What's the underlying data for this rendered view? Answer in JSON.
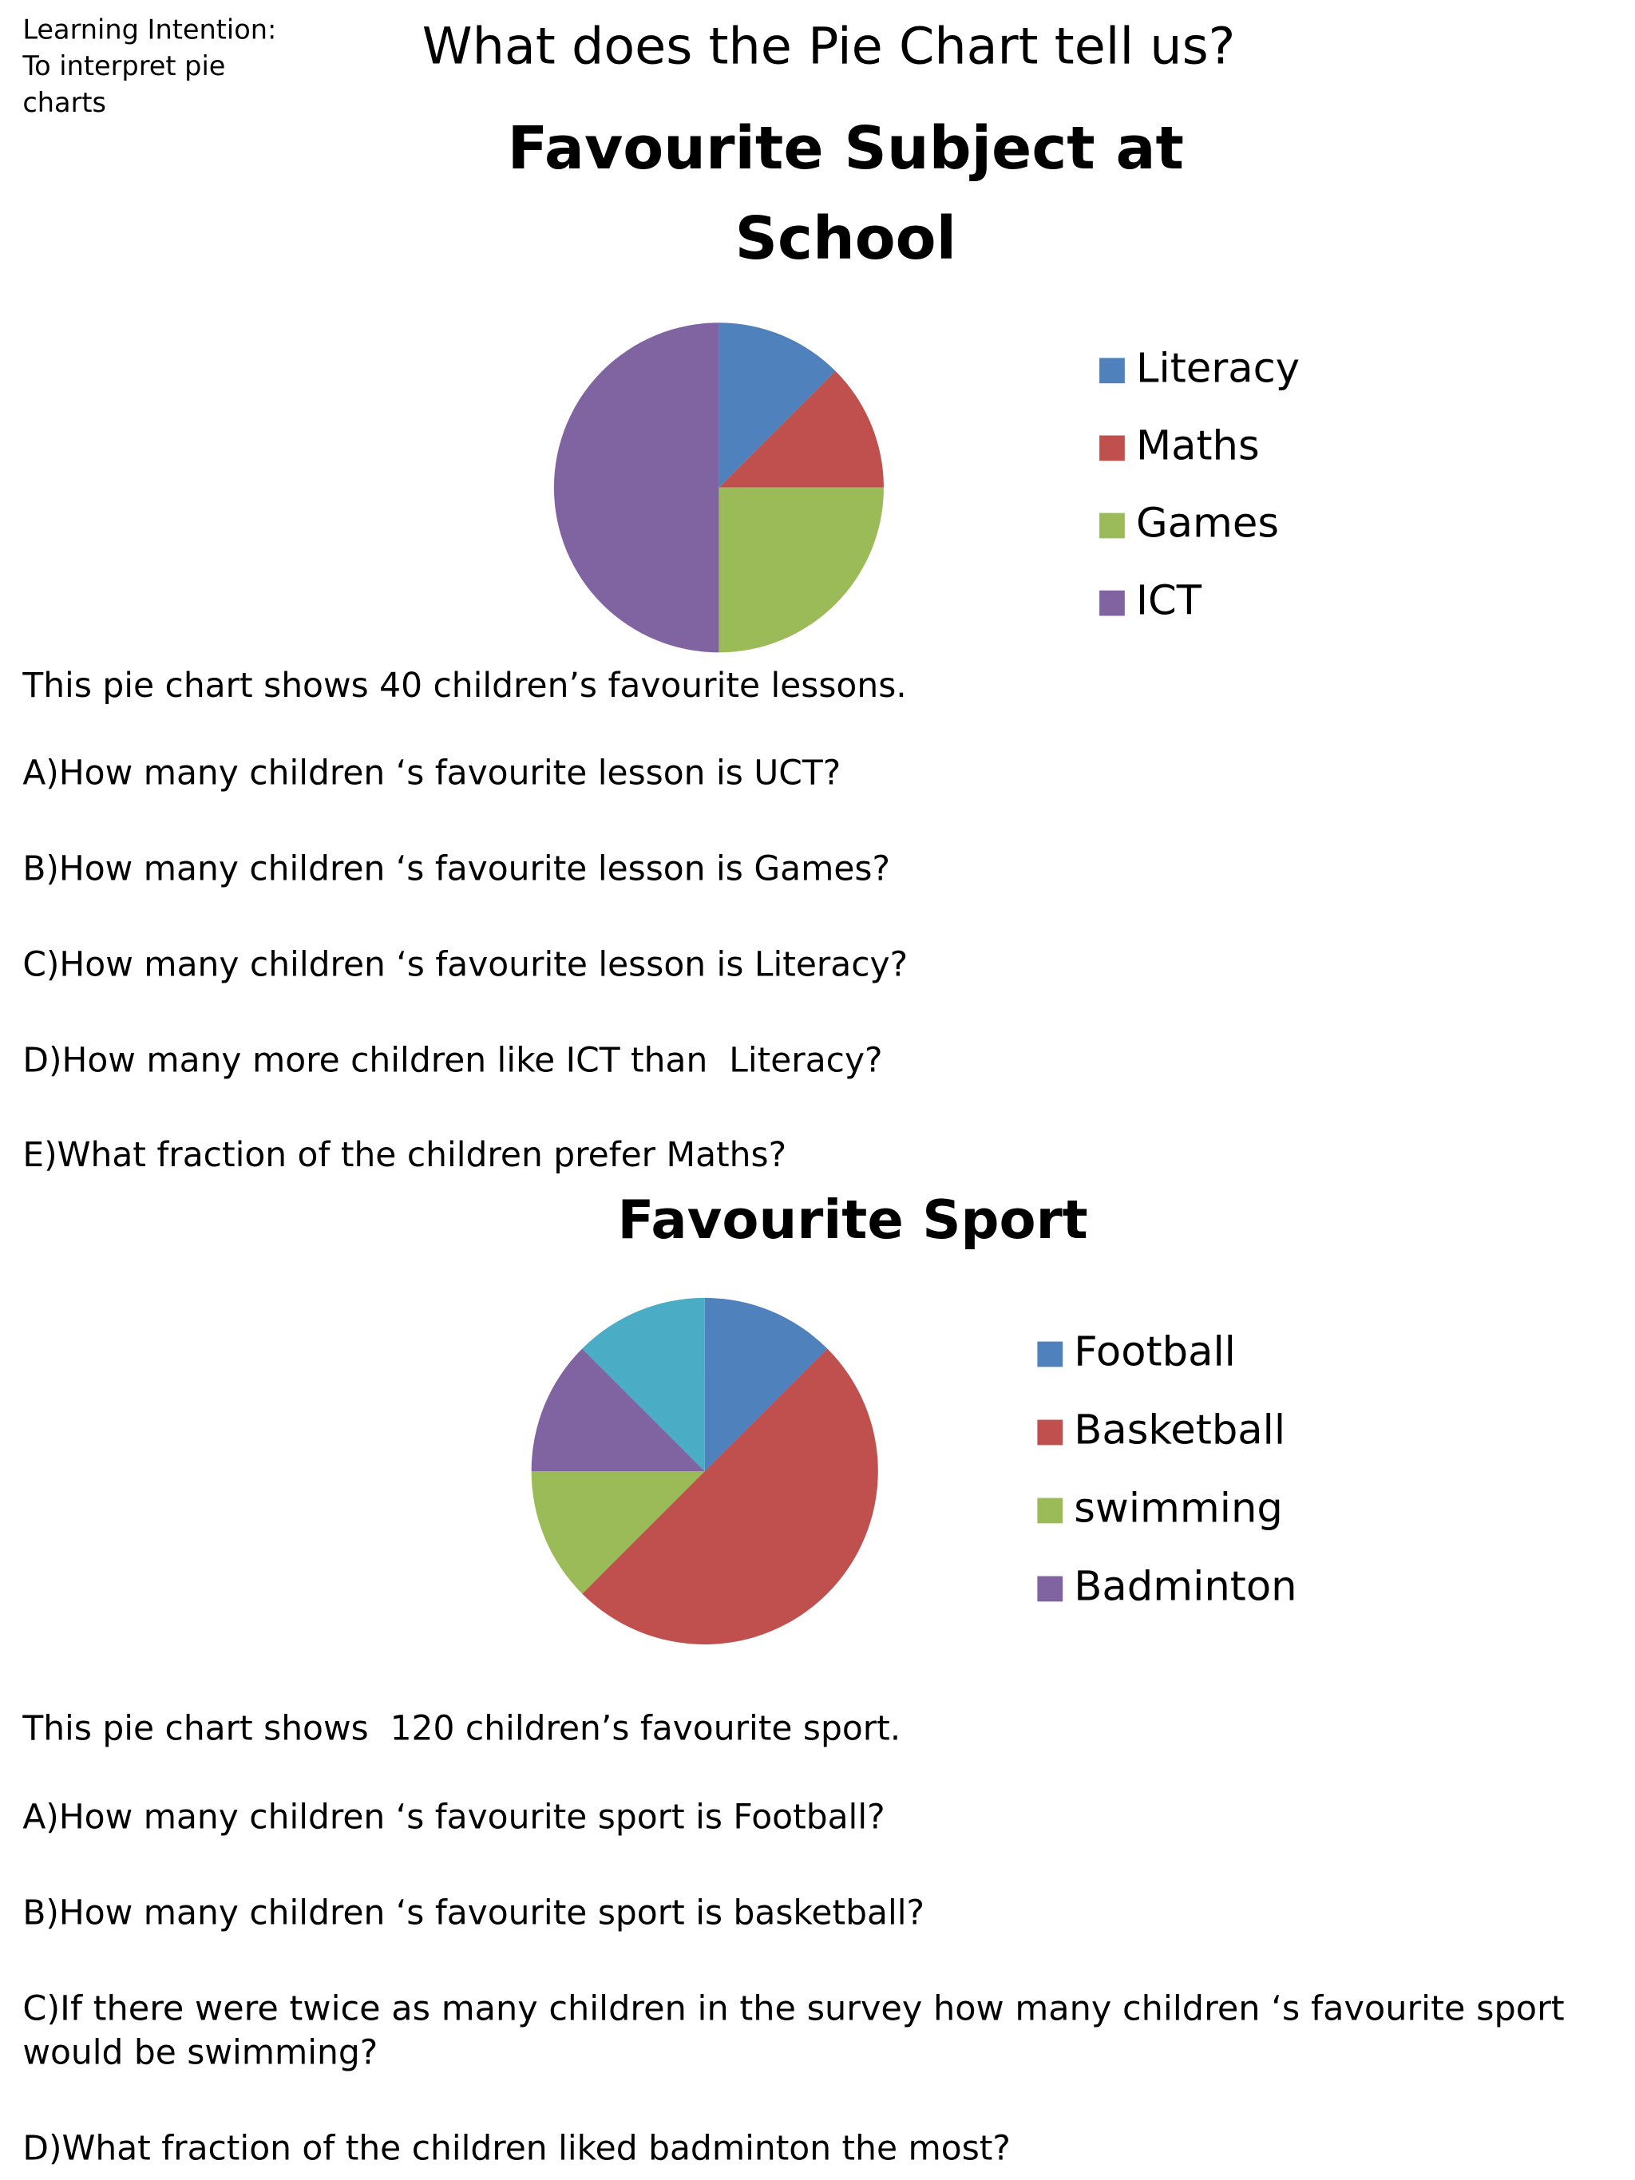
{
  "learning_intention": [
    "Learning Intention:",
    "To interpret pie",
    "charts"
  ],
  "heading": "What does the Pie Chart tell us?",
  "chart_data": [
    {
      "type": "pie",
      "title": [
        "Favourite Subject at",
        "School"
      ],
      "categories": [
        "Literacy",
        "Maths",
        "Games",
        "ICT"
      ],
      "values": [
        12.5,
        12.5,
        25,
        50
      ],
      "colors": [
        "#4f81bd",
        "#c0504d",
        "#9bbb59",
        "#8064a2"
      ],
      "legend": "right"
    },
    {
      "type": "pie",
      "title": [
        "Favourite Sport"
      ],
      "categories": [
        "Football",
        "Basketball",
        "swimming",
        "Badminton",
        null
      ],
      "values": [
        12.5,
        50,
        12.5,
        12.5,
        12.5
      ],
      "colors": [
        "#4f81bd",
        "#c0504d",
        "#9bbb59",
        "#8064a2",
        "#4bacc6"
      ],
      "legend": "right"
    }
  ],
  "sections": [
    {
      "intro": "This pie chart shows 40 children’s favourite lessons.",
      "questions": [
        [
          "A)How many children ‘s favourite lesson is UCT?"
        ],
        [
          "B)How many children ‘s favourite lesson is Games?"
        ],
        [
          "C)How many children ‘s favourite lesson is Literacy?"
        ],
        [
          "D)How many more children like ICT than  Literacy?"
        ],
        [
          "E)What fraction of the children prefer Maths?"
        ]
      ]
    },
    {
      "intro": "This pie chart shows  120 children’s favourite sport.",
      "questions": [
        [
          "A)How many children ‘s favourite sport is Football?"
        ],
        [
          "B)How many children ‘s favourite sport is basketball?"
        ],
        [
          "C)If there were twice as many children in the survey how many children ‘s favourite sport",
          "would be swimming?"
        ],
        [
          "D)What fraction of the children liked badminton the most?"
        ]
      ]
    }
  ]
}
